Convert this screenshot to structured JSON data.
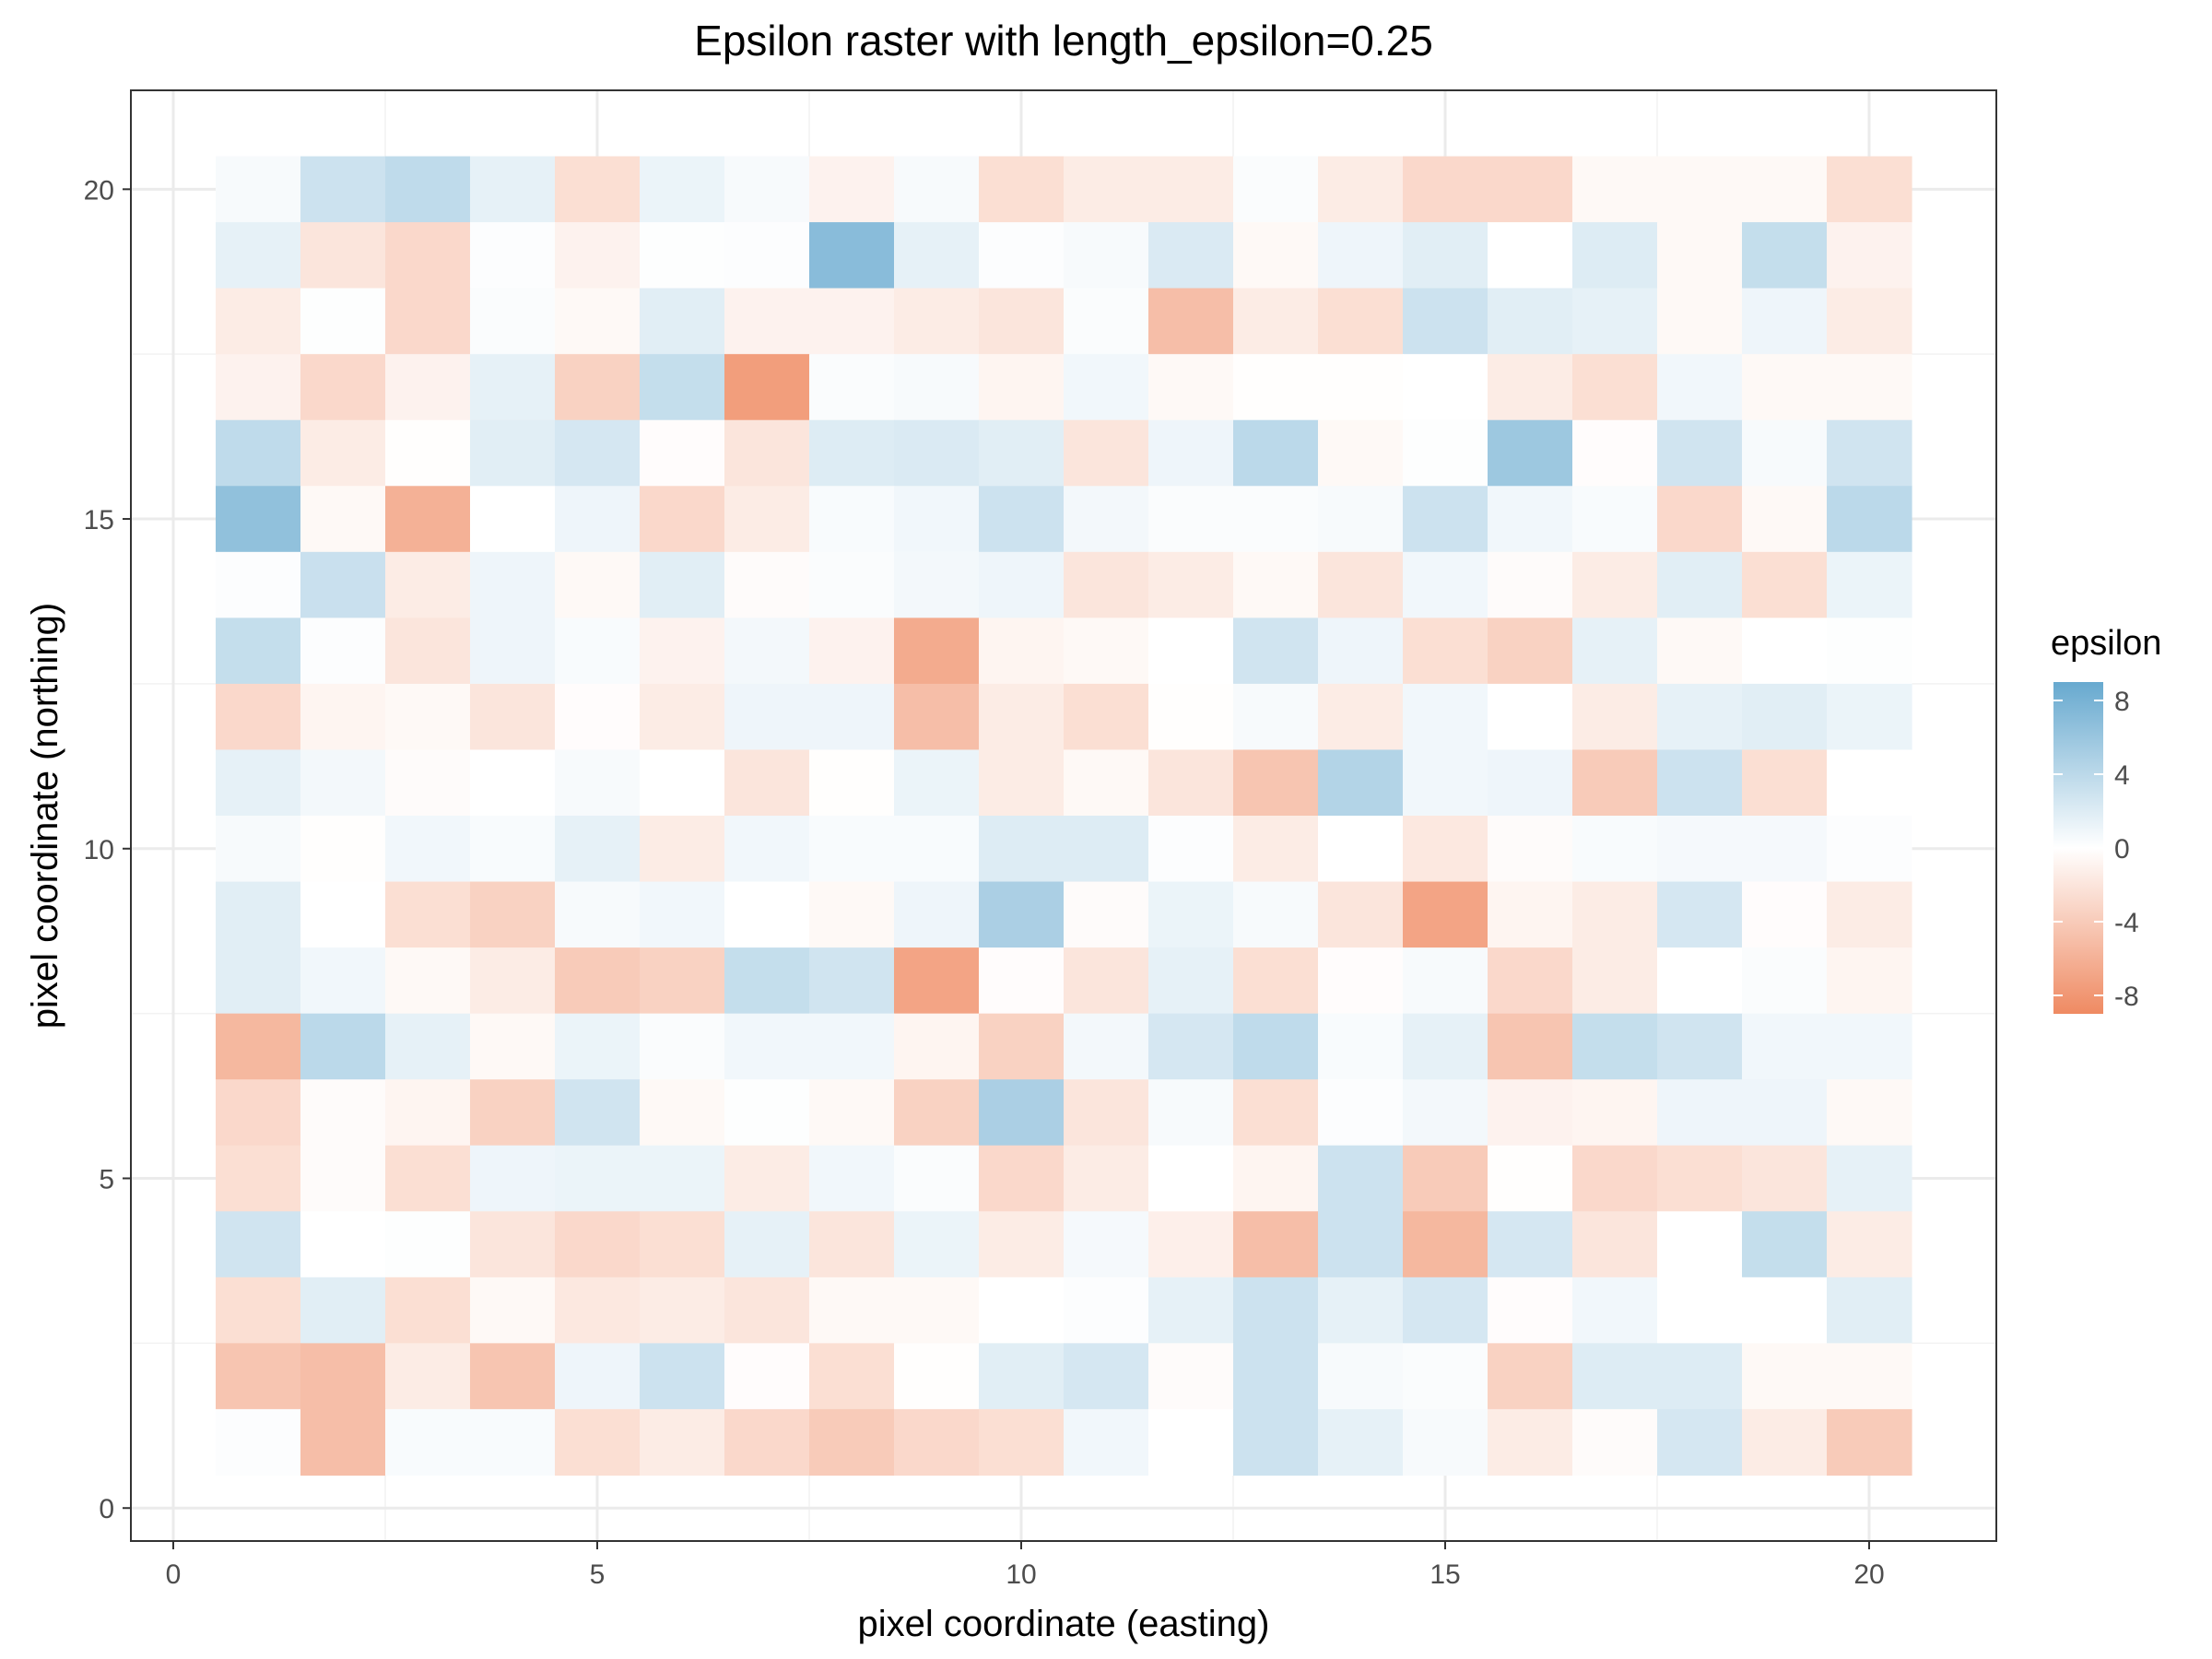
{
  "chart_data": {
    "type": "heatmap",
    "title": "Epsilon raster with length_epsilon=0.25",
    "xlabel": "pixel coordinate (easting)",
    "ylabel": "pixel coordinate (northing)",
    "xlim": [
      -0.5,
      21.5
    ],
    "ylim": [
      -0.5,
      21.5
    ],
    "x_ticks": [
      0,
      5,
      10,
      15,
      20
    ],
    "y_ticks": [
      0,
      5,
      10,
      15,
      20
    ],
    "grid": true,
    "legend": {
      "title": "epsilon",
      "position": "right",
      "ticks": [
        8,
        4,
        0,
        -4,
        -8
      ],
      "range": [
        -9,
        9
      ],
      "low_color": "#ef8a62",
      "mid_color": "#ffffff",
      "high_color": "#67a9cf"
    },
    "x": [
      1,
      2,
      3,
      4,
      5,
      6,
      7,
      8,
      9,
      10,
      11,
      12,
      13,
      14,
      15,
      16,
      17,
      18,
      19,
      20
    ],
    "y": [
      20,
      19,
      18,
      17,
      16,
      15,
      14,
      13,
      12,
      11,
      10,
      9,
      8,
      7,
      6,
      5,
      4,
      3,
      2,
      1
    ],
    "values": [
      [
        0.5,
        3,
        3.8,
        1.5,
        -2.5,
        1.2,
        0.5,
        -1,
        0.5,
        -2.5,
        -1.5,
        -1.5,
        0.3,
        -1.5,
        -3,
        -3,
        -0.5,
        -0.5,
        -0.5,
        -2.5
      ],
      [
        1.5,
        -2,
        -3,
        0.2,
        -1,
        0.1,
        0.2,
        7,
        1.5,
        0.2,
        0.5,
        2.2,
        -0.5,
        1,
        1.8,
        0,
        2,
        -0.5,
        3.5,
        -1
      ],
      [
        -1.5,
        0.1,
        -3,
        0.3,
        -0.5,
        1.8,
        -1,
        -1,
        -1.5,
        -2,
        0.3,
        -5,
        -1.5,
        -2.5,
        3,
        1.8,
        1.5,
        -0.5,
        1,
        -1.5
      ],
      [
        -1,
        -3,
        -1,
        1.5,
        -3.5,
        3.5,
        -7.5,
        0.3,
        0.5,
        -0.8,
        0.8,
        -0.5,
        -0.1,
        -0.1,
        0,
        -1.5,
        -2.5,
        0.8,
        -0.5,
        -0.5
      ],
      [
        3.8,
        -1.5,
        -0.1,
        1.8,
        2.5,
        -0.2,
        -2,
        2,
        2.2,
        1.8,
        -2,
        1,
        4,
        -0.5,
        0.1,
        5.8,
        -0.2,
        2.8,
        0.5,
        2.8
      ],
      [
        6.5,
        -0.5,
        -6,
        0,
        1,
        -3,
        -1.5,
        0.4,
        0.8,
        3,
        0.7,
        0.3,
        0.3,
        0.5,
        3,
        0.8,
        0.4,
        -3,
        -0.5,
        4
      ],
      [
        0.2,
        3.2,
        -1.5,
        1,
        -0.5,
        1.8,
        -0.3,
        0.3,
        0.7,
        1,
        -2,
        -1.5,
        -0.5,
        -2,
        0.8,
        -0.3,
        -1.5,
        1.8,
        -2.5,
        1.2
      ],
      [
        3.5,
        0.2,
        -2,
        1,
        0.4,
        -1,
        0.7,
        -1,
        -6.5,
        -0.8,
        -0.5,
        0,
        2.8,
        1,
        -2.5,
        -3.5,
        1.5,
        -0.5,
        0,
        0.1
      ],
      [
        -3,
        -0.8,
        -0.5,
        -2,
        -0.2,
        -1.5,
        1,
        1,
        -5,
        -1.5,
        -2.5,
        -0.1,
        0.5,
        -1.5,
        0.8,
        0,
        -1.5,
        1.5,
        1.8,
        1.2
      ],
      [
        1.5,
        0.7,
        -0.3,
        0,
        0.5,
        0,
        -2,
        -0.1,
        1.2,
        -1.5,
        -0.5,
        -2,
        -4.5,
        4.5,
        0.8,
        1,
        -4,
        3,
        -2.5,
        0
      ],
      [
        0.5,
        -0.1,
        0.8,
        0.4,
        1.5,
        -1.5,
        0.8,
        0.4,
        0.4,
        2,
        2,
        0.2,
        -1.5,
        0,
        -1.8,
        -0.3,
        0.4,
        0.6,
        0.6,
        0.2
      ],
      [
        1.8,
        0,
        -2.5,
        -3.5,
        0.5,
        0.8,
        0,
        -0.5,
        1,
        5,
        -0.3,
        1.2,
        0.5,
        -2,
        -7,
        -0.8,
        -1.5,
        2.5,
        -0.2,
        -1.5
      ],
      [
        1.8,
        0.8,
        -0.5,
        -1.5,
        -4,
        -3.5,
        3.5,
        2.8,
        -7,
        -0.2,
        -2,
        1.5,
        -2.5,
        -0.2,
        0.5,
        -3,
        -1.5,
        0,
        0.3,
        -0.8
      ],
      [
        -5.5,
        4,
        1.5,
        -0.5,
        1.2,
        0.3,
        0.8,
        0.8,
        -0.8,
        -3.5,
        0.7,
        2.5,
        3.8,
        0.4,
        1.5,
        -4.5,
        3.5,
        2.8,
        0.8,
        0.8
      ],
      [
        -3,
        -0.3,
        -0.8,
        -3.5,
        2.8,
        -0.5,
        0.1,
        -0.5,
        -3.5,
        5,
        -2,
        0.5,
        -2.5,
        0.2,
        0.7,
        -1,
        -0.8,
        1,
        1,
        -0.5
      ],
      [
        -2.5,
        -0.3,
        -2.5,
        1,
        1.2,
        1.2,
        -1.5,
        0.8,
        0.3,
        -3,
        -1.5,
        0,
        -0.8,
        3,
        -4,
        -0.1,
        -3,
        -2.5,
        -2,
        1.5
      ],
      [
        2.8,
        0,
        0.1,
        -2,
        -3,
        -2.5,
        1.5,
        -2,
        1.2,
        -1.5,
        0.6,
        -1.2,
        -5,
        3,
        -5.5,
        2.5,
        -2,
        0,
        3.5,
        -1.5
      ],
      [
        -2.5,
        1.8,
        -2.5,
        -0.5,
        -1.8,
        -1.5,
        -2,
        -0.5,
        -0.5,
        0,
        0.2,
        1.5,
        3,
        1.5,
        2.5,
        -0.2,
        0.8,
        0,
        0,
        1.8
      ],
      [
        -4.5,
        -5,
        -1.5,
        -4.5,
        1,
        3,
        -0.2,
        -2.5,
        -0.1,
        1.8,
        2.5,
        -0.3,
        3,
        0.5,
        0.3,
        -3.5,
        2,
        2,
        -0.5,
        -0.5
      ],
      [
        0.2,
        -5,
        0.4,
        0.4,
        -2.5,
        -1.5,
        -3,
        -4,
        -3,
        -2.5,
        0.8,
        0,
        3,
        1.5,
        0.5,
        -1.5,
        -0.3,
        2.5,
        -1.5,
        -4
      ]
    ]
  }
}
